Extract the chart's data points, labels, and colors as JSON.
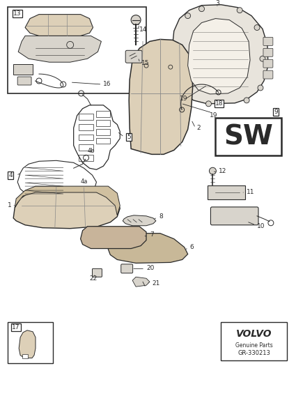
{
  "bg_color": "#ffffff",
  "lc": "#2a2a2a",
  "tan": "#c8b49a",
  "ltan": "#ddd0b8",
  "dgray": "#888888",
  "lgray": "#d8d4cc",
  "volvo_text": "VOLVO",
  "genuine_parts": "Genuine Parts",
  "part_number": "GR-330213",
  "sw_label": "SW",
  "figsize": [
    4.25,
    6.01
  ],
  "dpi": 100
}
